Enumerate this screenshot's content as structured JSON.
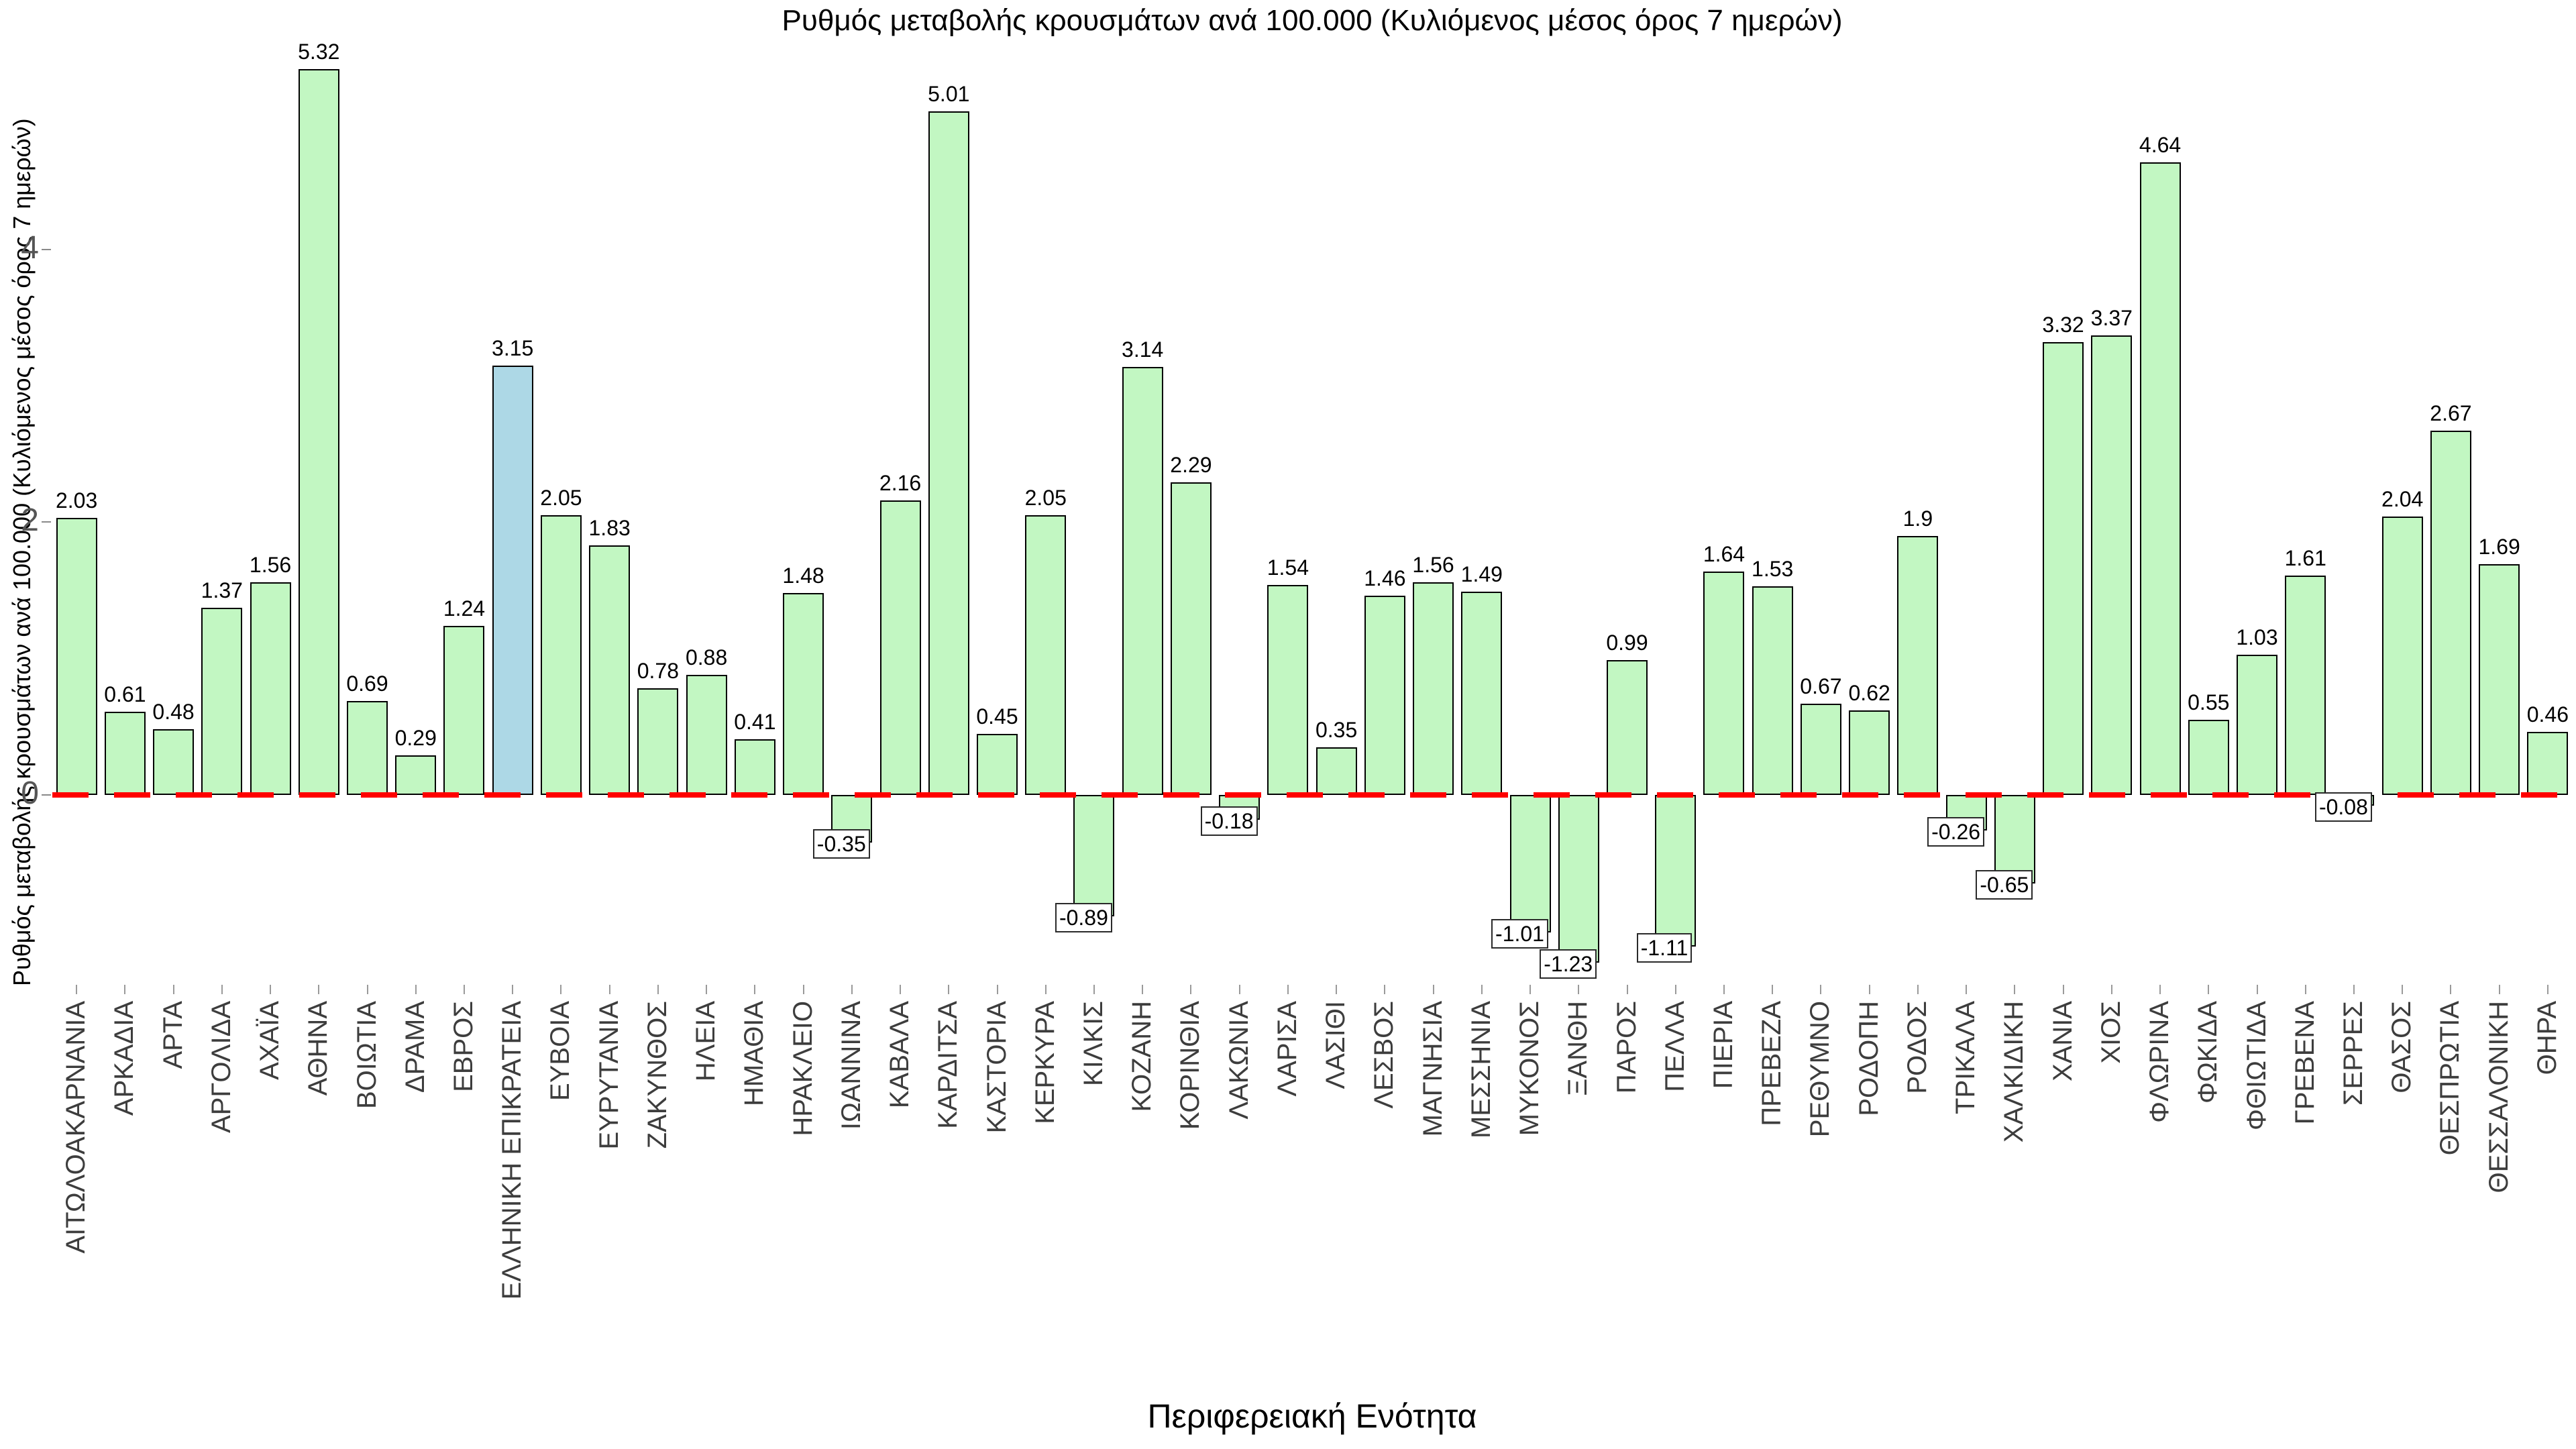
{
  "title": "Ρυθμός μεταβολής κρουσμάτων ανά 100.000 (Κυλιόμενος μέσος όρος 7 ημερών)",
  "y_axis": {
    "label": "Ρυθμός μεταβολής κρουσμάτων ανά 100.000 (Κυλιόμενος μέσος όρος 7 ημερών)",
    "tick_labels": [
      "0",
      "2",
      "4"
    ]
  },
  "x_axis": {
    "label": "Περιφερειακή Ενότητα"
  },
  "chart_data": {
    "type": "bar",
    "title": "Ρυθμός μεταβολής κρουσμάτων ανά 100.000 (Κυλιόμενος μέσος όρος 7 ημερών)",
    "xlabel": "Περιφερειακή Ενότητα",
    "ylabel": "Ρυθμός μεταβολής κρουσμάτων ανά 100.000 (Κυλιόμενος μέσος όρος 7 ημερών)",
    "categories": [
      "ΑΙΤΩΛΟΑΚΑΡΝΑΝΙΑ",
      "ΑΡΚΑΔΙΑ",
      "ΑΡΤΑ",
      "ΑΡΓΟΛΙΔΑ",
      "ΑΧΑΪΑ",
      "ΑΘΗΝΑ",
      "ΒΟΙΩΤΙΑ",
      "ΔΡΑΜΑ",
      "ΕΒΡΟΣ",
      "ΕΛΛΗΝΙΚΗ ΕΠΙΚΡΑΤΕΙΑ",
      "ΕΥΒΟΙΑ",
      "ΕΥΡΥΤΑΝΙΑ",
      "ΖΑΚΥΝΘΟΣ",
      "ΗΛΕΙΑ",
      "ΗΜΑΘΙΑ",
      "ΗΡΑΚΛΕΙΟ",
      "ΙΩΑΝΝΙΝΑ",
      "ΚΑΒΑΛΑ",
      "ΚΑΡΔΙΤΣΑ",
      "ΚΑΣΤΟΡΙΑ",
      "ΚΕΡΚΥΡΑ",
      "ΚΙΛΚΙΣ",
      "ΚΟΖΑΝΗ",
      "ΚΟΡΙΝΘΙΑ",
      "ΛΑΚΩΝΙΑ",
      "ΛΑΡΙΣΑ",
      "ΛΑΣΙΘΙ",
      "ΛΕΣΒΟΣ",
      "ΜΑΓΝΗΣΙΑ",
      "ΜΕΣΣΗΝΙΑ",
      "ΜΥΚΟΝΟΣ",
      "ΞΑΝΘΗ",
      "ΠΑΡΟΣ",
      "ΠΕΛΛΑ",
      "ΠΙΕΡΙΑ",
      "ΠΡΕΒΕΖΑ",
      "ΡΕΘΥΜΝΟ",
      "ΡΟΔΟΠΗ",
      "ΡΟΔΟΣ",
      "ΤΡΙΚΑΛΑ",
      "ΧΑΛΚΙΔΙΚΗ",
      "ΧΑΝΙΑ",
      "ΧΙΟΣ",
      "ΦΛΩΡΙΝΑ",
      "ΦΩΚΙΔΑ",
      "ΦΘΙΩΤΙΔΑ",
      "ΓΡΕΒΕΝΑ",
      "ΣΕΡΡΕΣ",
      "ΘΑΣΟΣ",
      "ΘΕΣΠΡΩΤΙΑ",
      "ΘΕΣΣΑΛΟΝΙΚΗ",
      "ΘΗΡΑ"
    ],
    "values": [
      2.03,
      0.61,
      0.48,
      1.37,
      1.56,
      5.32,
      0.69,
      0.29,
      1.24,
      3.15,
      2.05,
      1.83,
      0.78,
      0.88,
      0.41,
      1.48,
      -0.35,
      2.16,
      5.01,
      0.45,
      2.05,
      -0.89,
      3.14,
      2.29,
      -0.18,
      1.54,
      0.35,
      1.46,
      1.56,
      1.49,
      -1.01,
      -1.23,
      0.99,
      -1.11,
      1.64,
      1.53,
      0.67,
      0.62,
      1.9,
      -0.26,
      -0.65,
      3.32,
      3.37,
      4.64,
      0.55,
      1.03,
      1.61,
      -0.08,
      2.04,
      2.67,
      1.69,
      0.46
    ],
    "highlight": {
      "index": 9,
      "category": "ΕΛΛΗΝΙΚΗ ΕΠΙΚΡΑΤΕΙΑ",
      "value": 3.15
    },
    "yticks": [
      0,
      2,
      4
    ],
    "ylim": [
      -1.39,
      5.55
    ],
    "grid": false,
    "legend": false,
    "zero_line": {
      "style": "dashed",
      "color": "#ff0000"
    },
    "colors": {
      "bar_fill": "#c2f7c2",
      "highlight_fill": "#add8e6",
      "bar_border": "#000000",
      "zero_line": "#ff0000",
      "y_tick_label": "#555555",
      "category_label": "#3d3d3d",
      "title": "#000000"
    }
  }
}
